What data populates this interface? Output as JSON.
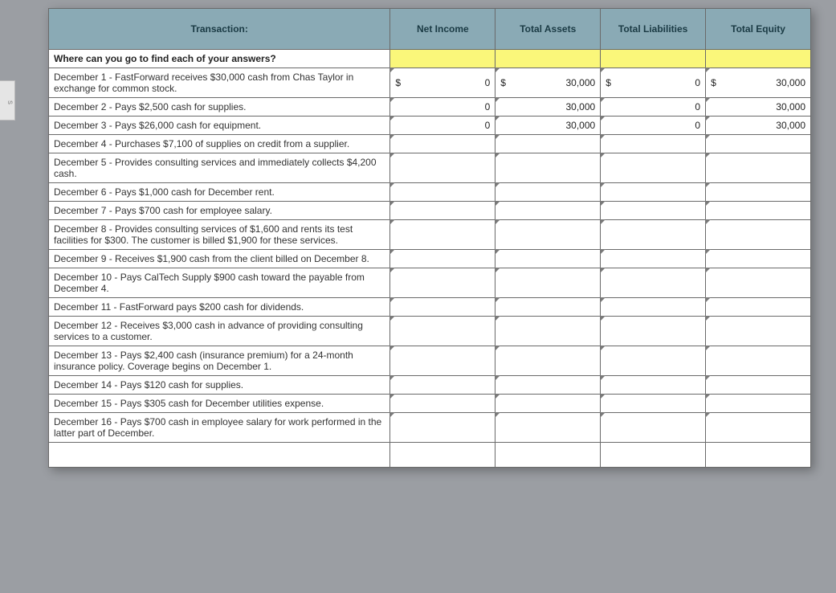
{
  "sideTab": "s",
  "headers": {
    "transaction": "Transaction:",
    "netIncome": "Net Income",
    "totalAssets": "Total Assets",
    "totalLiabilities": "Total Liabilities",
    "totalEquity": "Total Equity"
  },
  "questionRow": "Where can you go to find each of your answers?",
  "rows": [
    {
      "t": "December 1 - FastForward receives $30,000 cash from Chas Taylor in exchange for common stock.",
      "ni_sym": "$",
      "ni_val": "0",
      "ta_sym": "$",
      "ta_val": "30,000",
      "tl_sym": "$",
      "tl_val": "0",
      "te_sym": "$",
      "te_val": "30,000"
    },
    {
      "t": "December 2 - Pays $2,500 cash for supplies.",
      "ni_val": "0",
      "ta_val": "30,000",
      "tl_val": "0",
      "te_val": "30,000"
    },
    {
      "t": "December 3 - Pays $26,000 cash for equipment.",
      "ni_val": "0",
      "ta_val": "30,000",
      "tl_val": "0",
      "te_val": "30,000"
    },
    {
      "t": "December 4 - Purchases $7,100 of supplies on credit from a supplier."
    },
    {
      "t": "December 5 - Provides consulting services and immediately collects $4,200 cash."
    },
    {
      "t": "December 6 - Pays $1,000 cash for December rent."
    },
    {
      "t": "December 7 - Pays $700 cash for employee salary."
    },
    {
      "t": "December 8 - Provides consulting services of $1,600 and rents its test facilities for $300. The customer is billed $1,900 for these services."
    },
    {
      "t": "December 9 - Receives $1,900 cash from the client billed on December 8."
    },
    {
      "t": "December 10 - Pays CalTech Supply $900 cash toward the payable from December 4."
    },
    {
      "t": "December 11 - FastForward pays $200 cash for dividends."
    },
    {
      "t": "December 12 - Receives $3,000 cash in advance of providing consulting services to a customer."
    },
    {
      "t": "December 13 - Pays $2,400 cash (insurance premium) for a 24-month insurance policy. Coverage begins on December 1."
    },
    {
      "t": "December 14 - Pays $120 cash for supplies."
    },
    {
      "t": "December 15 - Pays $305 cash for December utilities expense."
    },
    {
      "t": "December 16 - Pays $700 cash in employee salary for work performed in the latter part of December."
    }
  ],
  "colors": {
    "headerBg": "#8aaab5",
    "yellow": "#faf77a",
    "border": "#6a6a6a",
    "pageBg": "#9b9ea3"
  }
}
